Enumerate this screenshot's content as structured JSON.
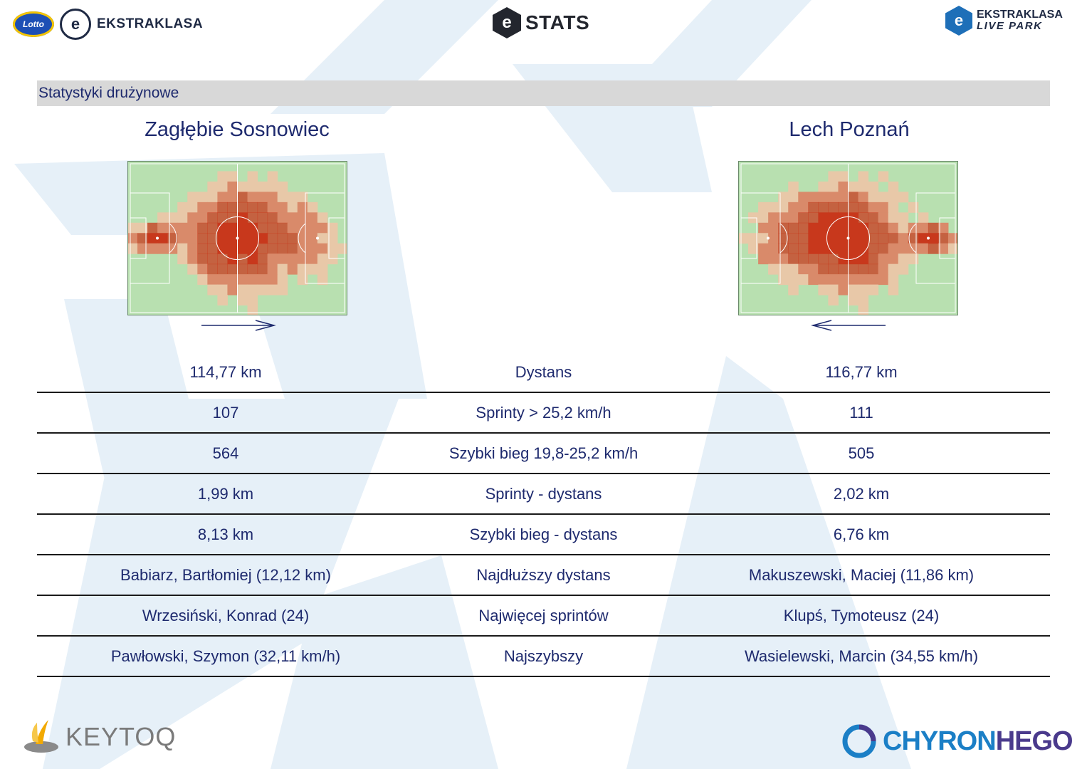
{
  "header": {
    "left_logo_badge": "Lotto",
    "left_logo_ball": "e",
    "left_logo_text": "EKSTRAKLASA",
    "center_logo_mark": "e",
    "center_logo_text": "STATS",
    "right_logo_mark": "e",
    "right_logo_line1": "EKSTRAKLASA",
    "right_logo_line2": "LIVE PARK"
  },
  "section_title": "Statystyki drużynowe",
  "teams": {
    "left": {
      "name": "Zagłębie Sosnowiec",
      "attack_direction": "right"
    },
    "right": {
      "name": "Lech Poznań",
      "attack_direction": "left"
    }
  },
  "heatmap_colors": {
    "pitch": "#b8e0b0",
    "low": "#e8c8a8",
    "mid": "#d98a6a",
    "high": "#c8381c",
    "line": "#ffffff"
  },
  "stats": [
    {
      "left": "114,77 km",
      "label": "Dystans",
      "right": "116,77 km"
    },
    {
      "left": "107",
      "label": "Sprinty > 25,2 km/h",
      "right": "111"
    },
    {
      "left": "564",
      "label": "Szybki bieg 19,8-25,2 km/h",
      "right": "505"
    },
    {
      "left": "1,99 km",
      "label": "Sprinty - dystans",
      "right": "2,02 km"
    },
    {
      "left": "8,13 km",
      "label": "Szybki bieg - dystans",
      "right": "6,76 km"
    },
    {
      "left": "Babiarz, Bartłomiej (12,12 km)",
      "label": "Najdłuższy dystans",
      "right": "Makuszewski, Maciej (11,86 km)"
    },
    {
      "left": "Wrzesiński, Konrad (24)",
      "label": "Najwięcej sprintów",
      "right": "Klupś, Tymoteusz (24)"
    },
    {
      "left": "Pawłowski, Szymon (32,11 km/h)",
      "label": "Najszybszy",
      "right": "Wasielewski, Marcin (34,55 km/h)"
    }
  ],
  "footer": {
    "left_brand": "KEYTOQ",
    "right_brand_a": "CHYRON",
    "right_brand_b": "HEGO"
  }
}
